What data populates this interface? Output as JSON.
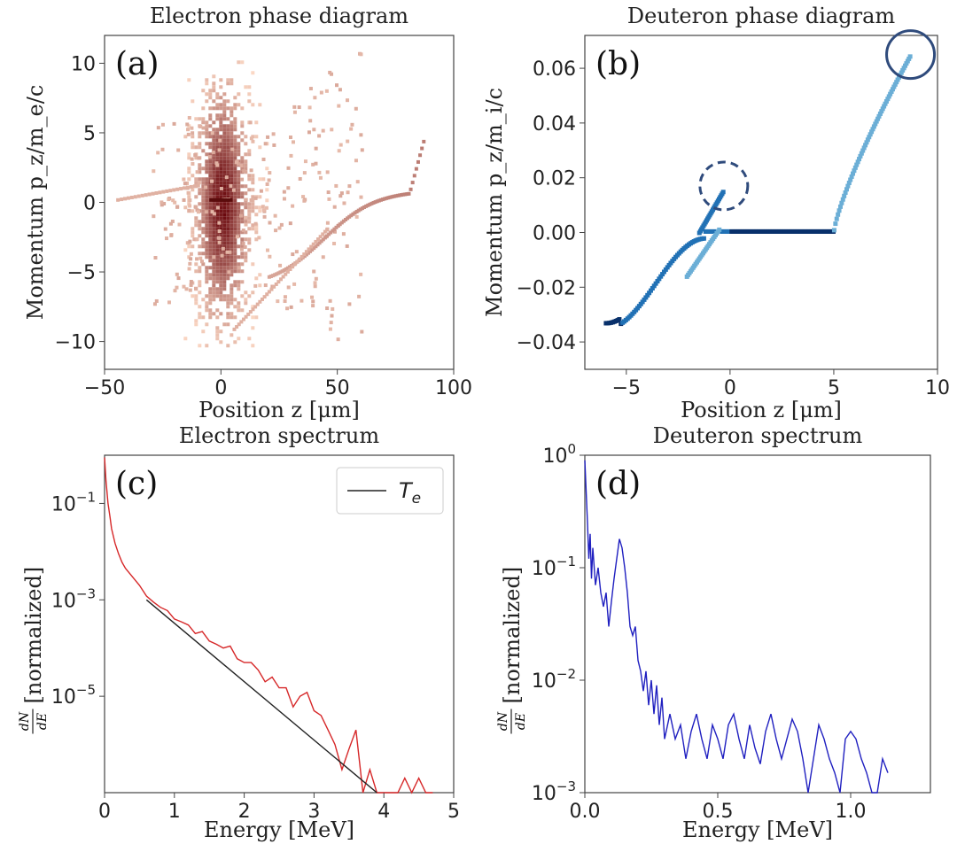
{
  "chart_data": [
    {
      "id": "a",
      "type": "heatmap",
      "panel_label": "(a)",
      "title": "Electron phase diagram",
      "xlabel": "Position z [μm]",
      "ylabel": "Momentum  p_z/m_e/c",
      "xlim": [
        -50,
        100
      ],
      "ylim": [
        -12,
        12
      ],
      "xticks": [
        -50,
        0,
        50,
        100
      ],
      "xtick_labels": [
        "−50",
        "0",
        "50",
        "100"
      ],
      "yticks": [
        10,
        5,
        0,
        -5,
        -10
      ],
      "ytick_labels": [
        "10",
        "5",
        "0",
        "−5",
        "−10"
      ],
      "colormap": "Reds"
    },
    {
      "id": "b",
      "type": "heatmap",
      "panel_label": "(b)",
      "title": "Deuteron phase diagram",
      "xlabel": "Position z [μm]",
      "ylabel": "Momentum  p_z/m_i/c",
      "xlim": [
        -7,
        10
      ],
      "ylim": [
        -0.05,
        0.072
      ],
      "xticks": [
        -5,
        0,
        5,
        10
      ],
      "xtick_labels": [
        "−5",
        "0",
        "5",
        "10"
      ],
      "yticks": [
        0.06,
        0.04,
        0.02,
        0.0,
        -0.02,
        -0.04
      ],
      "ytick_labels": [
        "0.06",
        "0.04",
        "0.02",
        "0.00",
        "−0.02",
        "−0.04"
      ],
      "colormap": "Blues",
      "annotations": [
        {
          "shape": "circle",
          "style": "solid",
          "x": 8.7,
          "y": 0.065
        },
        {
          "shape": "circle",
          "style": "dashed",
          "x": -0.3,
          "y": 0.017
        }
      ]
    },
    {
      "id": "c",
      "type": "line",
      "panel_label": "(c)",
      "title": "Electron spectrum",
      "xlabel": "Energy [MeV]",
      "ylabel": "dN/dE [normalized]",
      "yscale": "log",
      "xlim": [
        0,
        5
      ],
      "ylim": [
        1e-07,
        1
      ],
      "xticks": [
        0,
        1,
        2,
        3,
        4,
        5
      ],
      "ytick_labels": [
        "10^-1",
        "10^-3",
        "10^-5"
      ],
      "legend": {
        "position": "top-right",
        "entries": [
          "T_e"
        ]
      },
      "series": [
        {
          "name": "",
          "color": "#d62728",
          "x": [
            0.0,
            0.02,
            0.05,
            0.08,
            0.1,
            0.15,
            0.2,
            0.25,
            0.3,
            0.4,
            0.5,
            0.6,
            0.7,
            0.8,
            0.9,
            1.0,
            1.1,
            1.2,
            1.3,
            1.4,
            1.5,
            1.6,
            1.7,
            1.8,
            1.9,
            2.0,
            2.1,
            2.2,
            2.3,
            2.4,
            2.5,
            2.6,
            2.7,
            2.8,
            2.9,
            3.0,
            3.1,
            3.2,
            3.3,
            3.4,
            3.5,
            3.6,
            3.7,
            3.8,
            3.9,
            4.0,
            4.1,
            4.2,
            4.3,
            4.4,
            4.5,
            4.6,
            4.7
          ],
          "y": [
            0.9,
            0.3,
            0.1,
            0.05,
            0.03,
            0.015,
            0.009,
            0.006,
            0.0045,
            0.003,
            0.002,
            0.0012,
            0.0009,
            0.0007,
            0.0006,
            0.0004,
            0.00035,
            0.0003,
            0.0002,
            0.00022,
            0.00014,
            0.00012,
            0.0001,
            0.00011,
            6e-05,
            5e-05,
            5e-05,
            3.5e-05,
            2e-05,
            2.5e-05,
            1.5e-05,
            1.5e-05,
            6e-06,
            1e-05,
            1.2e-05,
            5e-06,
            4e-06,
            2e-06,
            1e-06,
            3e-07,
            8e-07,
            2e-06,
            1e-07,
            3e-07,
            1e-07,
            1e-07,
            1e-07,
            1e-07,
            2e-07,
            1e-07,
            2e-07,
            1e-07,
            1e-07
          ]
        },
        {
          "name": "T_e",
          "color": "#222222",
          "x": [
            0.6,
            3.9
          ],
          "y": [
            0.001,
            1e-07
          ]
        }
      ]
    },
    {
      "id": "d",
      "type": "line",
      "panel_label": "(d)",
      "title": "Deuteron spectrum",
      "xlabel": "Energy [MeV]",
      "ylabel": "dN/dE [normalized]",
      "yscale": "log",
      "xlim": [
        0,
        1.3
      ],
      "ylim": [
        0.001,
        1
      ],
      "xticks": [
        0.0,
        0.5,
        1.0
      ],
      "xtick_labels": [
        "0.0",
        "0.5",
        "1.0"
      ],
      "ytick_labels": [
        "10^0",
        "10^-1",
        "10^-2",
        "10^-3"
      ],
      "series": [
        {
          "name": "",
          "color": "#2020c0",
          "x": [
            0.0,
            0.01,
            0.015,
            0.02,
            0.025,
            0.03,
            0.04,
            0.05,
            0.06,
            0.07,
            0.08,
            0.09,
            0.1,
            0.11,
            0.12,
            0.13,
            0.14,
            0.15,
            0.16,
            0.17,
            0.18,
            0.19,
            0.2,
            0.21,
            0.22,
            0.23,
            0.24,
            0.25,
            0.26,
            0.27,
            0.28,
            0.29,
            0.3,
            0.32,
            0.34,
            0.36,
            0.38,
            0.4,
            0.42,
            0.44,
            0.46,
            0.48,
            0.5,
            0.52,
            0.54,
            0.56,
            0.58,
            0.6,
            0.62,
            0.64,
            0.66,
            0.68,
            0.7,
            0.72,
            0.74,
            0.76,
            0.78,
            0.8,
            0.82,
            0.84,
            0.86,
            0.88,
            0.9,
            0.92,
            0.94,
            0.96,
            0.98,
            1.0,
            1.02,
            1.04,
            1.06,
            1.08,
            1.1,
            1.12,
            1.14
          ],
          "y": [
            0.9,
            0.25,
            0.12,
            0.2,
            0.08,
            0.15,
            0.07,
            0.1,
            0.06,
            0.045,
            0.06,
            0.03,
            0.05,
            0.08,
            0.12,
            0.18,
            0.15,
            0.1,
            0.06,
            0.03,
            0.025,
            0.03,
            0.015,
            0.012,
            0.008,
            0.012,
            0.006,
            0.01,
            0.005,
            0.009,
            0.004,
            0.007,
            0.003,
            0.005,
            0.003,
            0.004,
            0.002,
            0.0035,
            0.005,
            0.003,
            0.002,
            0.004,
            0.003,
            0.002,
            0.004,
            0.005,
            0.003,
            0.002,
            0.004,
            0.0025,
            0.0018,
            0.0035,
            0.005,
            0.003,
            0.002,
            0.003,
            0.0045,
            0.0035,
            0.002,
            0.001,
            0.002,
            0.004,
            0.003,
            0.002,
            0.0015,
            0.001,
            0.003,
            0.0035,
            0.003,
            0.002,
            0.0015,
            0.001,
            0.0008,
            0.002,
            0.0015
          ]
        }
      ]
    }
  ]
}
